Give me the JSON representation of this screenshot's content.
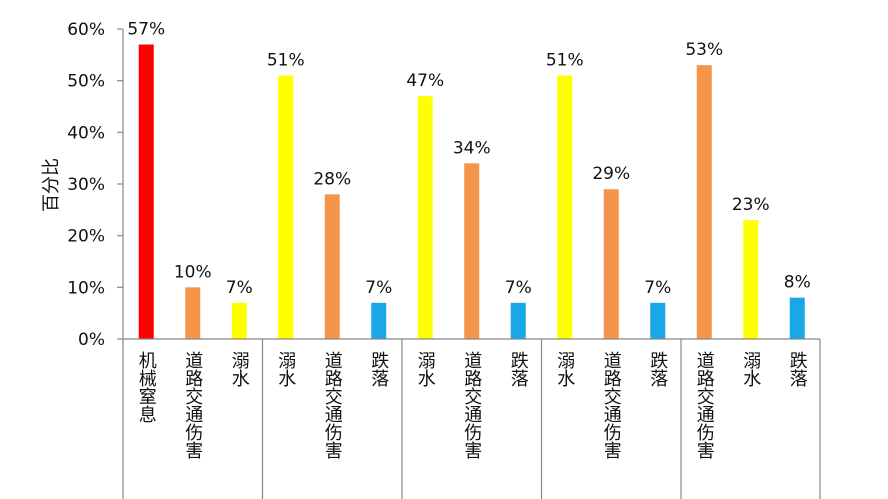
{
  "chart_data": {
    "type": "bar",
    "ylabel": "百分比",
    "ylim": [
      0,
      60
    ],
    "yticks": [
      "0%",
      "10%",
      "20%",
      "30%",
      "40%",
      "50%",
      "60%"
    ],
    "grid": false,
    "groups": [
      {
        "name": "",
        "bars": [
          {
            "category": "机械窒息",
            "value": 57,
            "label": "57%",
            "color": "#ff0000"
          },
          {
            "category": "道路交通伤害",
            "value": 10,
            "label": "10%",
            "color": "#f4954a"
          },
          {
            "category": "溺水",
            "value": 7,
            "label": "7%",
            "color": "#ffff00"
          }
        ]
      },
      {
        "name": "",
        "bars": [
          {
            "category": "溺水",
            "value": 51,
            "label": "51%",
            "color": "#ffff00"
          },
          {
            "category": "道路交通伤害",
            "value": 28,
            "label": "28%",
            "color": "#f4954a"
          },
          {
            "category": "跌落",
            "value": 7,
            "label": "7%",
            "color": "#1aa7e8"
          }
        ]
      },
      {
        "name": "",
        "bars": [
          {
            "category": "溺水",
            "value": 47,
            "label": "47%",
            "color": "#ffff00"
          },
          {
            "category": "道路交通伤害",
            "value": 34,
            "label": "34%",
            "color": "#f4954a"
          },
          {
            "category": "跌落",
            "value": 7,
            "label": "7%",
            "color": "#1aa7e8"
          }
        ]
      },
      {
        "name": "",
        "bars": [
          {
            "category": "溺水",
            "value": 51,
            "label": "51%",
            "color": "#ffff00"
          },
          {
            "category": "道路交通伤害",
            "value": 29,
            "label": "29%",
            "color": "#f4954a"
          },
          {
            "category": "跌落",
            "value": 7,
            "label": "7%",
            "color": "#1aa7e8"
          }
        ]
      },
      {
        "name": "",
        "bars": [
          {
            "category": "道路交通伤害",
            "value": 53,
            "label": "53%",
            "color": "#f4954a"
          },
          {
            "category": "溺水",
            "value": 23,
            "label": "23%",
            "color": "#ffff00"
          },
          {
            "category": "跌落",
            "value": 8,
            "label": "8%",
            "color": "#1aa7e8"
          }
        ]
      }
    ]
  }
}
